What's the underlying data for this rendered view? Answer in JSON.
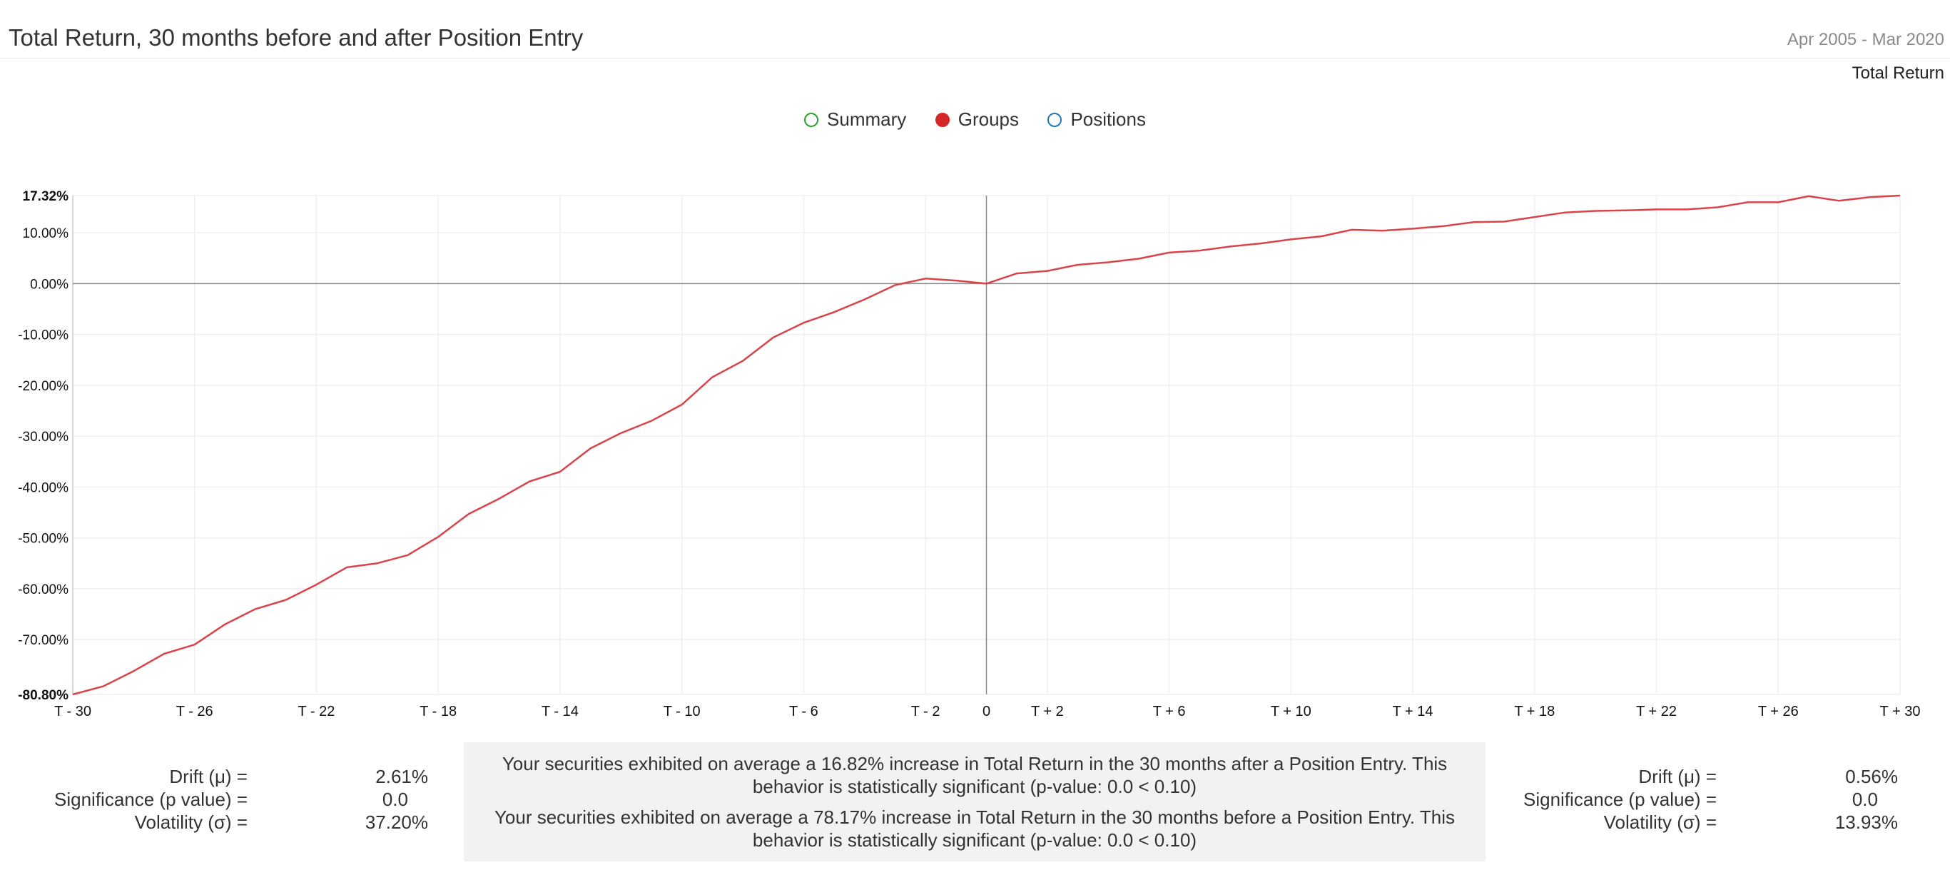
{
  "header": {
    "title": "Total Return, 30 months before and after Position Entry",
    "date_range": "Apr 2005 - Mar 2020",
    "metric": "Total Return"
  },
  "legend": [
    {
      "label": "Summary",
      "color": "#2ca02c",
      "filled": false
    },
    {
      "label": "Groups",
      "color": "#d62728",
      "filled": true
    },
    {
      "label": "Positions",
      "color": "#1f77b4",
      "filled": false
    }
  ],
  "chart_data": {
    "type": "line",
    "x_labels": [
      "T - 30",
      "T - 26",
      "T - 22",
      "T - 18",
      "T - 14",
      "T - 10",
      "T - 6",
      "T - 2",
      "0",
      "T + 2",
      "T + 6",
      "T + 10",
      "T + 14",
      "T + 18",
      "T + 22",
      "T + 26",
      "T + 30"
    ],
    "x_label_offsets": [
      -30,
      -26,
      -22,
      -18,
      -14,
      -10,
      -6,
      -2,
      0,
      2,
      6,
      10,
      14,
      18,
      22,
      26,
      30
    ],
    "y_ticks": [
      "17.32%",
      "10.00%",
      "0.00%",
      "-10.00%",
      "-20.00%",
      "-30.00%",
      "-40.00%",
      "-50.00%",
      "-60.00%",
      "-70.00%",
      "-80.80%"
    ],
    "y_tick_values": [
      17.32,
      10,
      0,
      -10,
      -20,
      -30,
      -40,
      -50,
      -60,
      -70,
      -80.8
    ],
    "ylim": [
      -80.8,
      17.32
    ],
    "xlim": [
      -30,
      30
    ],
    "grid": true,
    "series": [
      {
        "color": "#d9444b",
        "x": [
          -30,
          -29,
          -28,
          -27,
          -26,
          -25,
          -24,
          -23,
          -22,
          -21,
          -20,
          -19,
          -18,
          -17,
          -16,
          -15,
          -14,
          -13,
          -12,
          -11,
          -10,
          -9,
          -8,
          -7,
          -6,
          -5,
          -4,
          -3,
          -2,
          -1,
          0,
          1,
          2,
          3,
          4,
          5,
          6,
          7,
          8,
          9,
          10,
          11,
          12,
          13,
          14,
          15,
          16,
          17,
          18,
          19,
          20,
          21,
          22,
          23,
          24,
          25,
          26,
          27,
          28,
          29,
          30
        ],
        "y": [
          -80.8,
          -79.2,
          -76.2,
          -72.8,
          -71.0,
          -67.0,
          -64.0,
          -62.2,
          -59.2,
          -55.8,
          -55.0,
          -53.4,
          -49.8,
          -45.3,
          -42.3,
          -38.9,
          -37.0,
          -32.4,
          -29.4,
          -27.0,
          -23.8,
          -18.4,
          -15.2,
          -10.6,
          -7.7,
          -5.6,
          -3.1,
          -0.3,
          1.0,
          0.6,
          0.0,
          2.0,
          2.5,
          3.7,
          4.2,
          4.9,
          6.1,
          6.5,
          7.3,
          7.9,
          8.7,
          9.3,
          10.6,
          10.4,
          10.8,
          11.3,
          12.1,
          12.2,
          13.1,
          14.0,
          14.3,
          14.4,
          14.6,
          14.6,
          15.0,
          16.0,
          16.0,
          17.2,
          16.3,
          17.0,
          17.32
        ]
      }
    ]
  },
  "stats_left": {
    "drift_label": "Drift (μ) =",
    "drift_value": "2.61%",
    "significance_label": "Significance (p value) =",
    "significance_value": "0.0",
    "volatility_label": "Volatility (σ) =",
    "volatility_value": "37.20%"
  },
  "stats_right": {
    "drift_label": "Drift (μ) =",
    "drift_value": "0.56%",
    "significance_label": "Significance (p value) =",
    "significance_value": "0.0",
    "volatility_label": "Volatility (σ) =",
    "volatility_value": "13.93%"
  },
  "summary": {
    "after_text": "Your securities exhibited on average a 16.82% increase in Total Return in the 30 months after a Position Entry. This behavior is statistically significant (p-value: 0.0 < 0.10)",
    "before_text": "Your securities exhibited on average a 78.17% increase in Total Return in the 30 months before a Position Entry. This behavior is statistically significant (p-value: 0.0 < 0.10)"
  }
}
